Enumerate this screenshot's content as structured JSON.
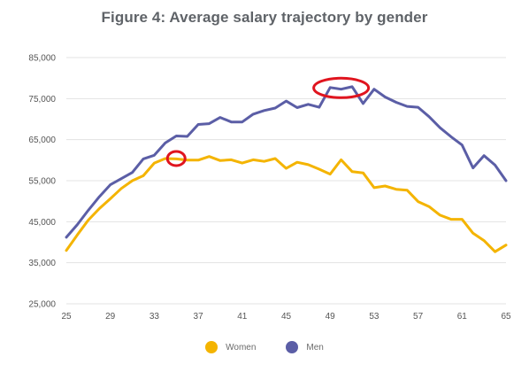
{
  "chart_data": {
    "type": "line",
    "title": "Figure 4: Average salary trajectory by gender",
    "xlabel": "",
    "ylabel": "",
    "xlim": [
      25,
      65
    ],
    "ylim": [
      25000,
      85000
    ],
    "x_ticks": [
      25,
      29,
      33,
      37,
      41,
      45,
      49,
      53,
      57,
      61,
      65
    ],
    "y_ticks": [
      {
        "value": 25000,
        "label": "25,000"
      },
      {
        "value": 35000,
        "label": "35,000"
      },
      {
        "value": 45000,
        "label": "45,000"
      },
      {
        "value": 55000,
        "label": "55,000"
      },
      {
        "value": 65000,
        "label": "65,000"
      },
      {
        "value": 75000,
        "label": "75,000"
      },
      {
        "value": 85000,
        "label": "85,000"
      }
    ],
    "grid": "horizontal",
    "legend_position": "bottom-center",
    "x": [
      25,
      26,
      27,
      28,
      29,
      30,
      31,
      32,
      33,
      34,
      35,
      36,
      37,
      38,
      39,
      40,
      41,
      42,
      43,
      44,
      45,
      46,
      47,
      48,
      49,
      50,
      51,
      52,
      53,
      54,
      55,
      56,
      57,
      58,
      59,
      60,
      61,
      62,
      63,
      64,
      65
    ],
    "series": [
      {
        "name": "Women",
        "color": "#F4B400",
        "values": [
          38000,
          41800,
          45400,
          48200,
          50600,
          53100,
          55000,
          56200,
          59300,
          60400,
          60300,
          60000,
          60000,
          60900,
          59900,
          60100,
          59300,
          60100,
          59700,
          60400,
          58000,
          59500,
          58900,
          57800,
          56600,
          60100,
          57200,
          56900,
          53300,
          53700,
          52900,
          52700,
          49900,
          48700,
          46600,
          45600,
          45600,
          42200,
          40400,
          37700,
          39300
        ]
      },
      {
        "name": "Men",
        "color": "#5B5EA6",
        "values": [
          41200,
          44300,
          47800,
          51100,
          54000,
          55500,
          57000,
          60300,
          61200,
          64200,
          65900,
          65800,
          68700,
          68900,
          70400,
          69300,
          69300,
          71200,
          72100,
          72700,
          74400,
          72800,
          73600,
          72900,
          77700,
          77300,
          77900,
          73800,
          77300,
          75400,
          74100,
          73100,
          72900,
          70600,
          67900,
          65700,
          63700,
          58100,
          61100,
          58800,
          55000
        ]
      }
    ],
    "annotations": [
      {
        "type": "ellipse",
        "color": "#E0141E",
        "cx": 35,
        "cy": 60400
      },
      {
        "type": "ellipse",
        "color": "#E0141E",
        "cx": 50,
        "cy": 77600
      }
    ]
  }
}
